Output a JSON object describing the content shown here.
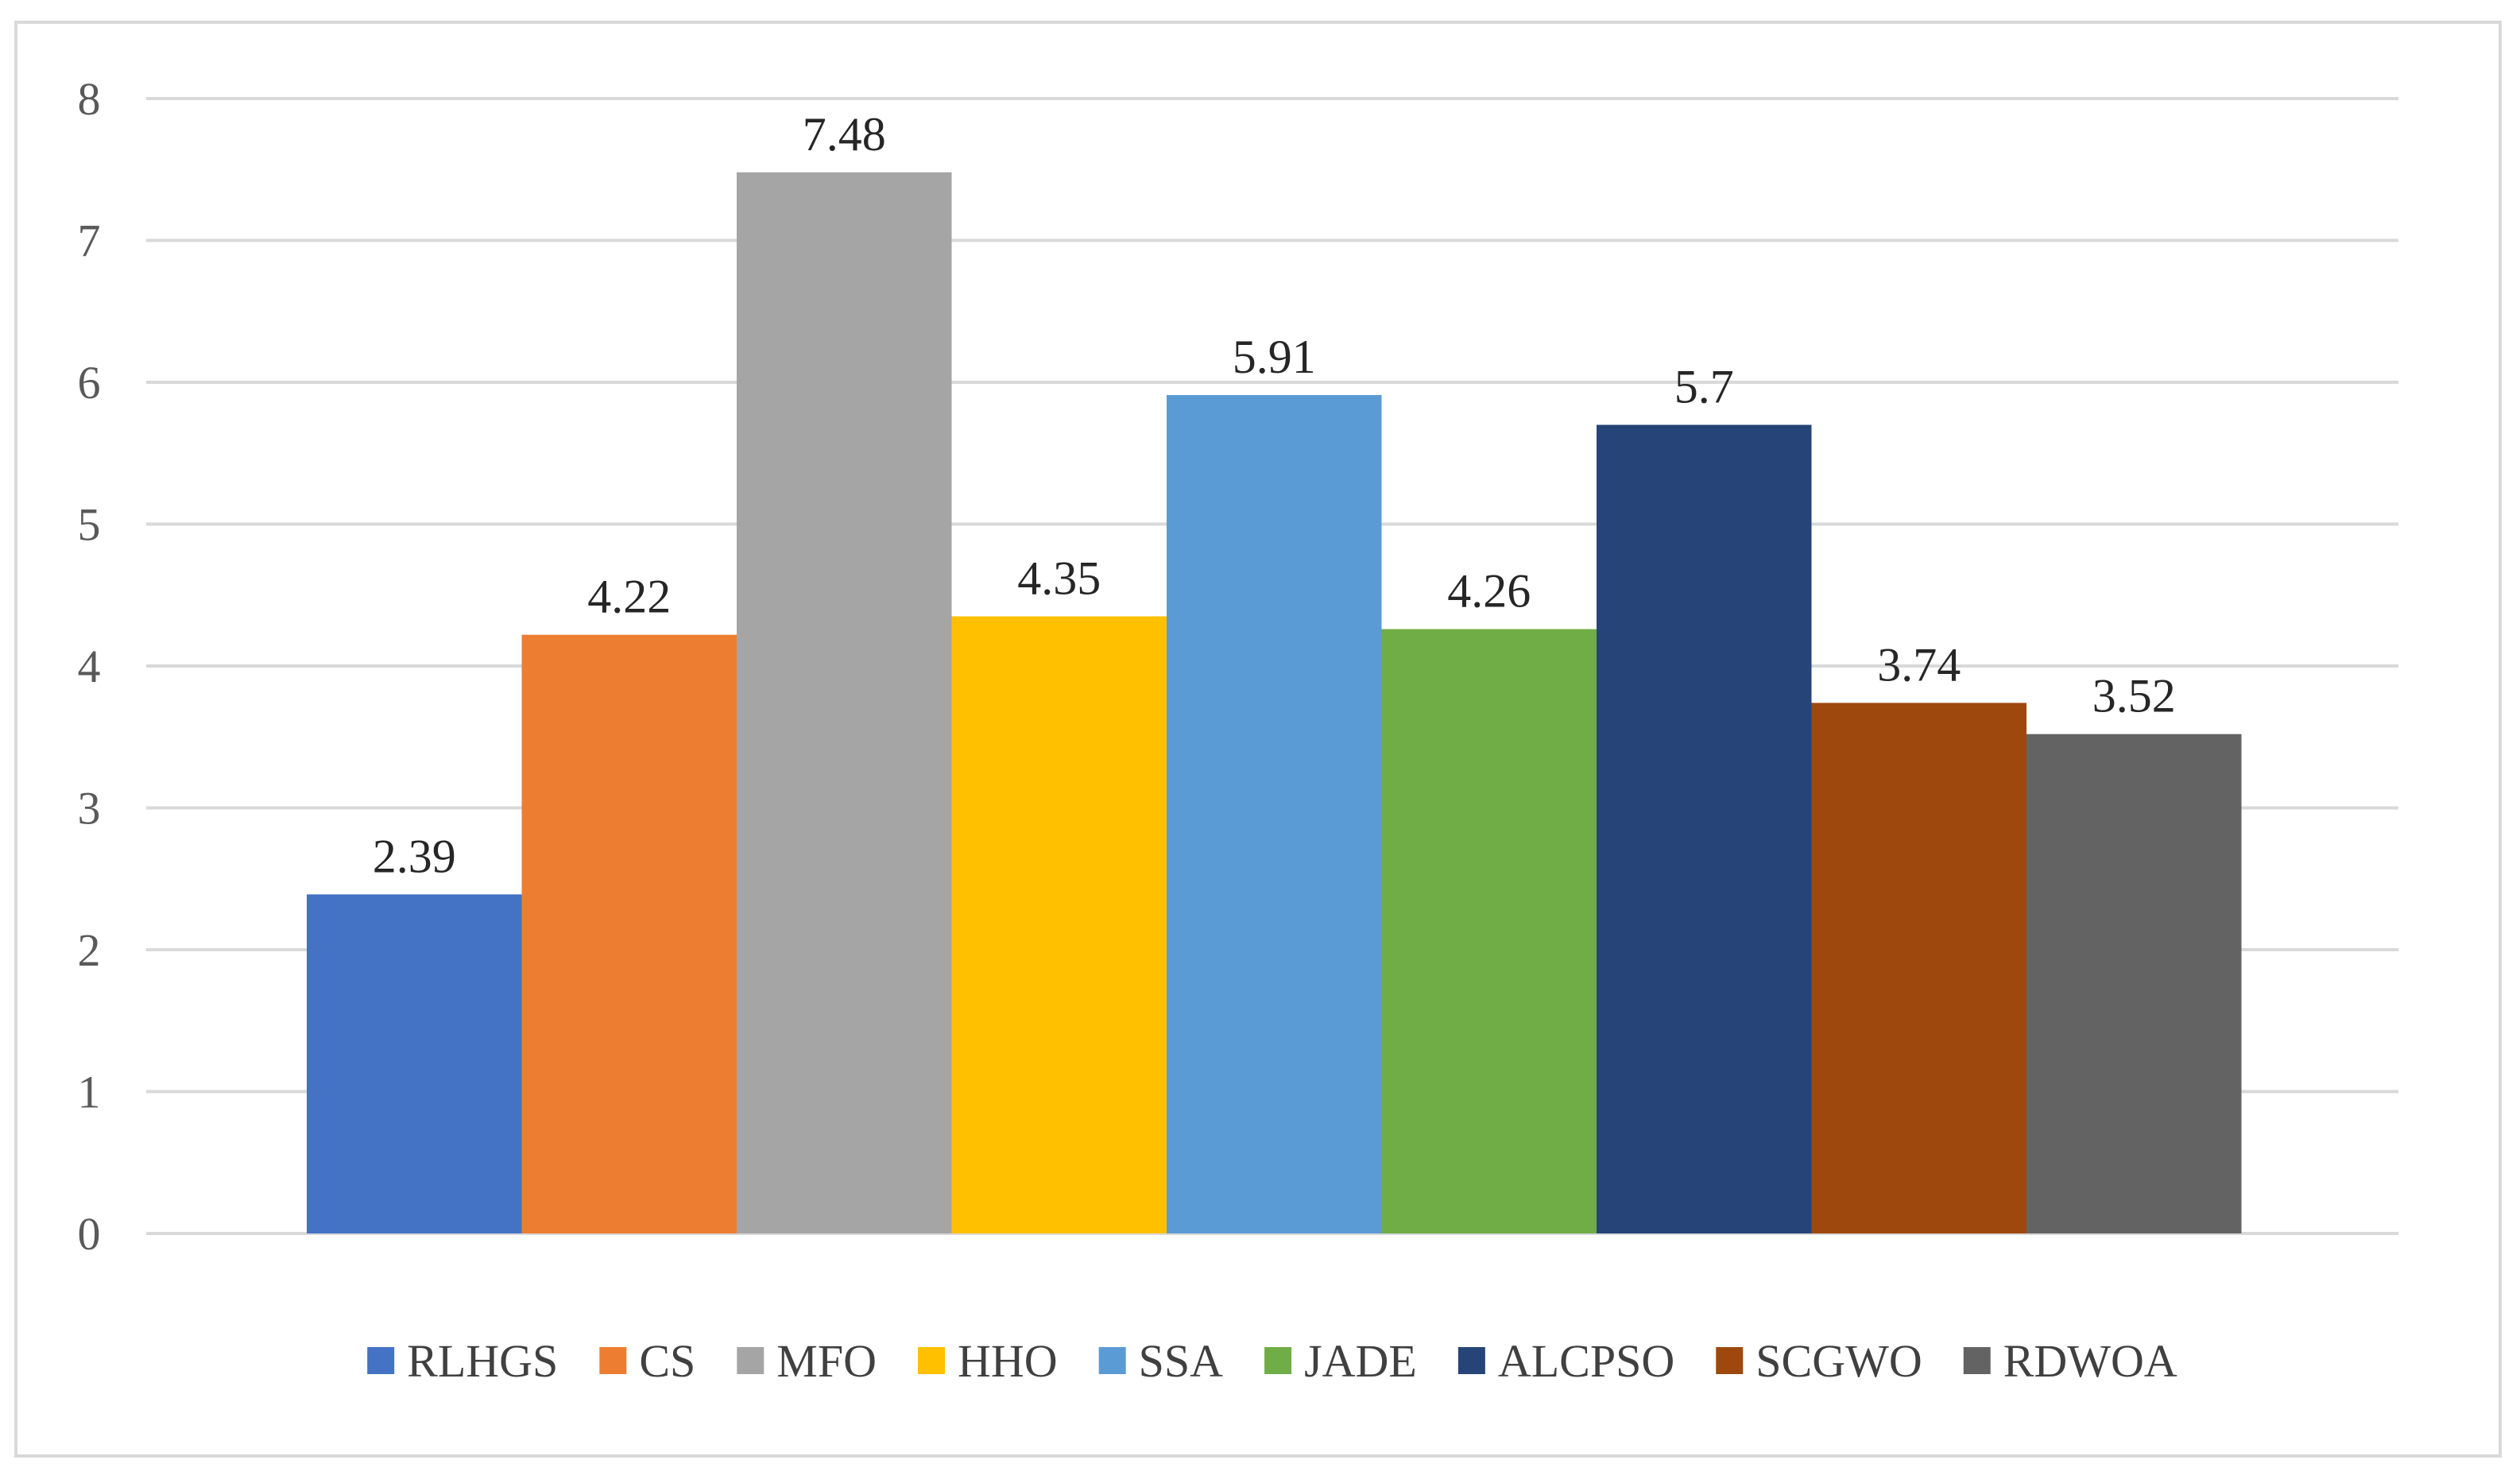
{
  "chart_data": {
    "type": "bar",
    "title": "",
    "xlabel": "",
    "ylabel": "",
    "ylim": [
      0,
      8
    ],
    "yticks": [
      0,
      1,
      2,
      3,
      4,
      5,
      6,
      7,
      8
    ],
    "grid": true,
    "legend_position": "bottom",
    "categories": [
      "RLHGS",
      "CS",
      "MFO",
      "HHO",
      "SSA",
      "JADE",
      "ALCPSO",
      "SCGWO",
      "RDWOA"
    ],
    "series": [
      {
        "name": "RLHGS",
        "value": 2.39,
        "label": "2.39",
        "color": "#4472c4"
      },
      {
        "name": "CS",
        "value": 4.22,
        "label": "4.22",
        "color": "#ed7d31"
      },
      {
        "name": "MFO",
        "value": 7.48,
        "label": "7.48",
        "color": "#a5a5a5"
      },
      {
        "name": "HHO",
        "value": 4.35,
        "label": "4.35",
        "color": "#ffc000"
      },
      {
        "name": "SSA",
        "value": 5.91,
        "label": "5.91",
        "color": "#5b9bd5"
      },
      {
        "name": "JADE",
        "value": 4.26,
        "label": "4.26",
        "color": "#70ad47"
      },
      {
        "name": "ALCPSO",
        "value": 5.7,
        "label": "5.7",
        "color": "#264478"
      },
      {
        "name": "SCGWO",
        "value": 3.74,
        "label": "3.74",
        "color": "#9e480e"
      },
      {
        "name": "RDWOA",
        "value": 3.52,
        "label": "3.52",
        "color": "#636363"
      }
    ]
  }
}
